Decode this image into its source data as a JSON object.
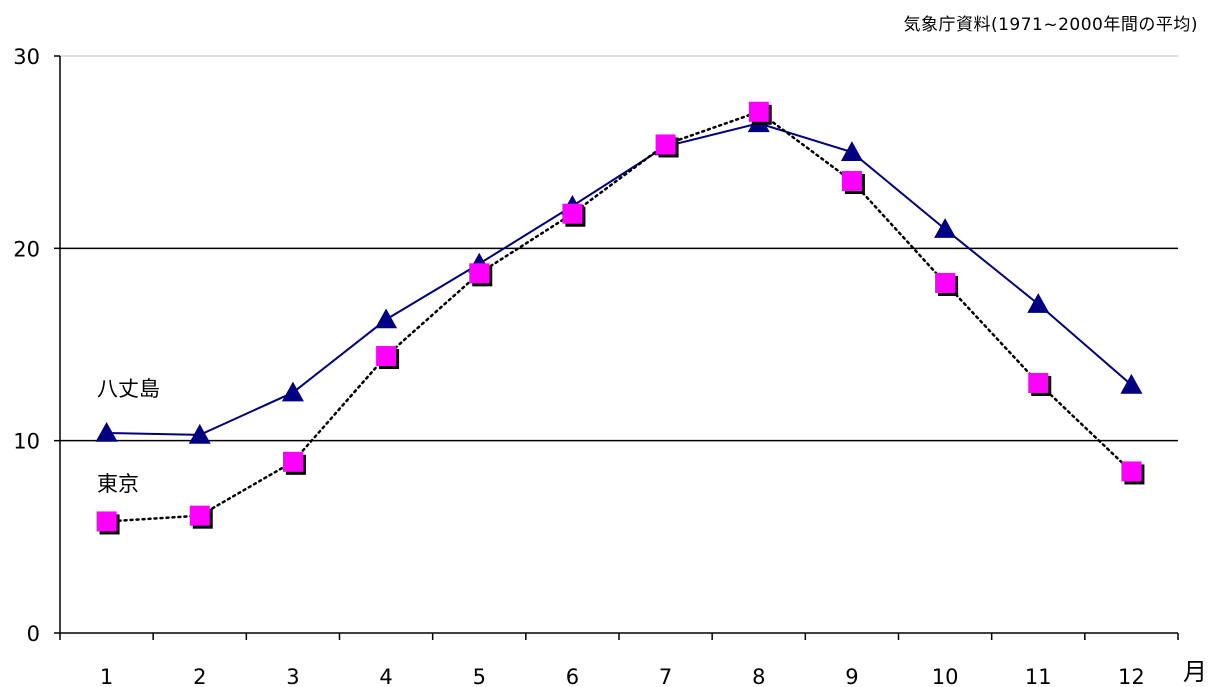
{
  "source_note": "気象庁資料(1971~2000年間の平均)",
  "chart_data": {
    "type": "line",
    "categories": [
      "1",
      "2",
      "3",
      "4",
      "5",
      "6",
      "7",
      "8",
      "9",
      "10",
      "11",
      "12"
    ],
    "x_unit": "月",
    "ylim": [
      0,
      30
    ],
    "yticks": [
      "0",
      "10",
      "20",
      "30"
    ],
    "grid": true,
    "series": [
      {
        "name": "八丈島",
        "values": [
          10.4,
          10.3,
          12.5,
          16.3,
          19.2,
          22.2,
          25.3,
          26.5,
          25.0,
          21.0,
          17.1,
          12.9
        ],
        "color": "#000080",
        "marker": "triangle",
        "line": "solid"
      },
      {
        "name": "東京",
        "values": [
          5.8,
          6.1,
          8.9,
          14.4,
          18.7,
          21.8,
          25.4,
          27.1,
          23.5,
          18.2,
          13.0,
          8.4
        ],
        "color": "#ff00ff",
        "marker": "square",
        "line": "dotted"
      }
    ]
  }
}
